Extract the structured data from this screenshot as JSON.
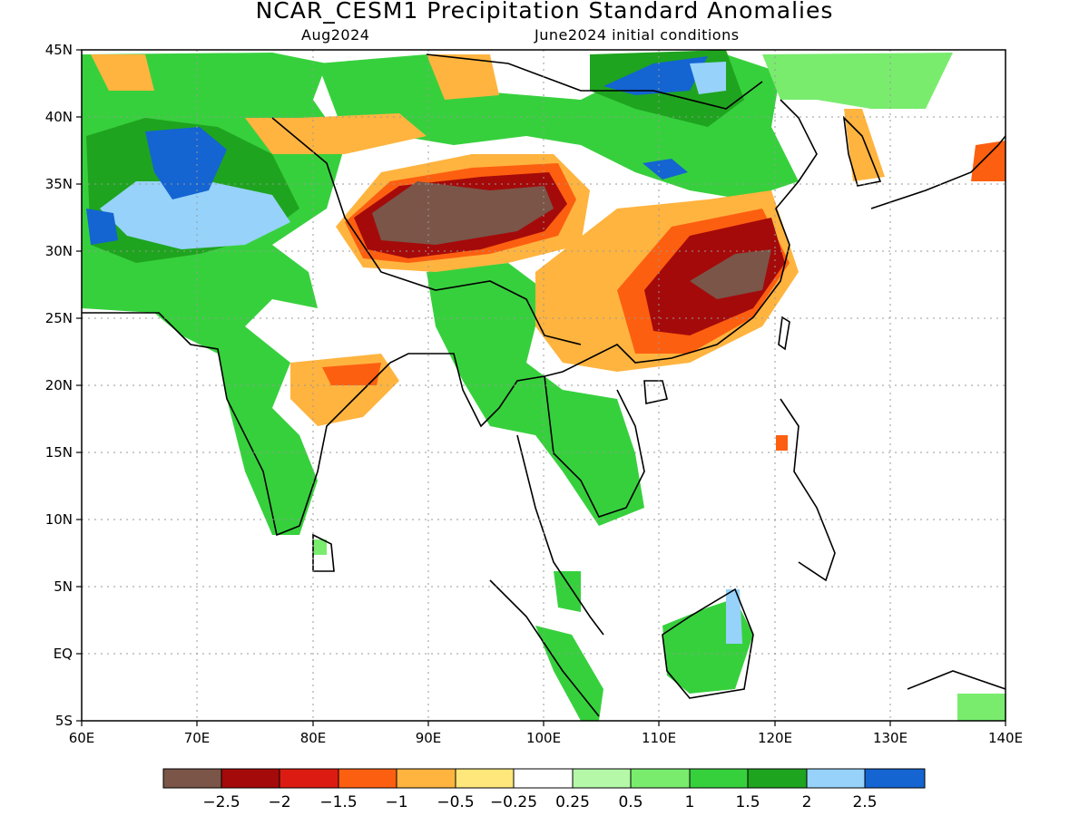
{
  "title": "NCAR_CESM1 Precipitation Standard Anomalies",
  "subtitle_left": "Aug2024",
  "subtitle_right": "June2024 initial conditions",
  "map": {
    "lon_range": [
      60,
      140
    ],
    "lat_range": [
      -5,
      45
    ],
    "x_ticks": [
      "60E",
      "70E",
      "80E",
      "90E",
      "100E",
      "110E",
      "120E",
      "130E",
      "140E"
    ],
    "y_ticks": [
      "5S",
      "EQ",
      "5N",
      "10N",
      "15N",
      "20N",
      "25N",
      "30N",
      "35N",
      "40N",
      "45N"
    ],
    "grid": "dotted"
  },
  "colorbar": {
    "colors": [
      "#7a5548",
      "#a50a0a",
      "#dc1c12",
      "#fd5f10",
      "#ffb43f",
      "#ffe77b",
      "#ffffff",
      "#b4f8a8",
      "#79ec6e",
      "#37d03d",
      "#1fa41f",
      "#96d2fa",
      "#1464d2"
    ],
    "labels": [
      "−2.5",
      "−2",
      "−1.5",
      "−1",
      "−0.5",
      "−0.25",
      "0.25",
      "0.5",
      "1",
      "1.5",
      "2",
      "2.5"
    ]
  }
}
